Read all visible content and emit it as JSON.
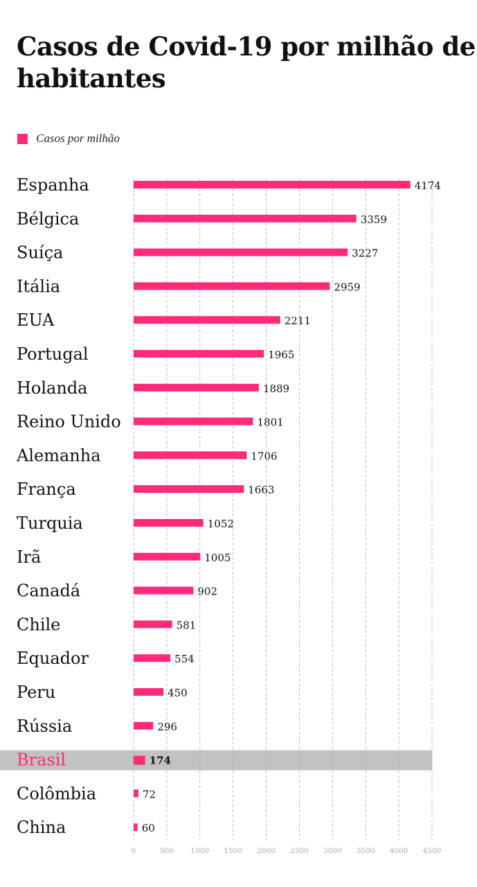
{
  "chart_data": {
    "type": "bar",
    "orientation": "horizontal",
    "title": "Casos de Covid-19 por milhão de habitantes",
    "legend": {
      "position": "top-left",
      "entries": [
        "Casos por milhão"
      ]
    },
    "categories": [
      "Espanha",
      "Bélgica",
      "Suíça",
      "Itália",
      "EUA",
      "Portugal",
      "Holanda",
      "Reino Unido",
      "Alemanha",
      "França",
      "Turquia",
      "Irã",
      "Canadá",
      "Chile",
      "Equador",
      "Peru",
      "Rússia",
      "Brasil",
      "Colômbia",
      "China"
    ],
    "series": [
      {
        "name": "Casos por milhão",
        "values": [
          4174,
          3359,
          3227,
          2959,
          2211,
          1965,
          1889,
          1801,
          1706,
          1663,
          1052,
          1005,
          902,
          581,
          554,
          450,
          296,
          174,
          72,
          60
        ]
      }
    ],
    "highlight": "Brasil",
    "xlim": [
      0,
      4500
    ],
    "xticks": [
      "0",
      "500",
      "1000",
      "1500",
      "2000",
      "2500",
      "3000",
      "3500",
      "4000",
      "4500"
    ],
    "grid": "vertical dashed",
    "colors": {
      "bar": "#ff2a78",
      "highlight_band": "#c2c2c2",
      "highlight_text": "#ff2a78"
    }
  }
}
